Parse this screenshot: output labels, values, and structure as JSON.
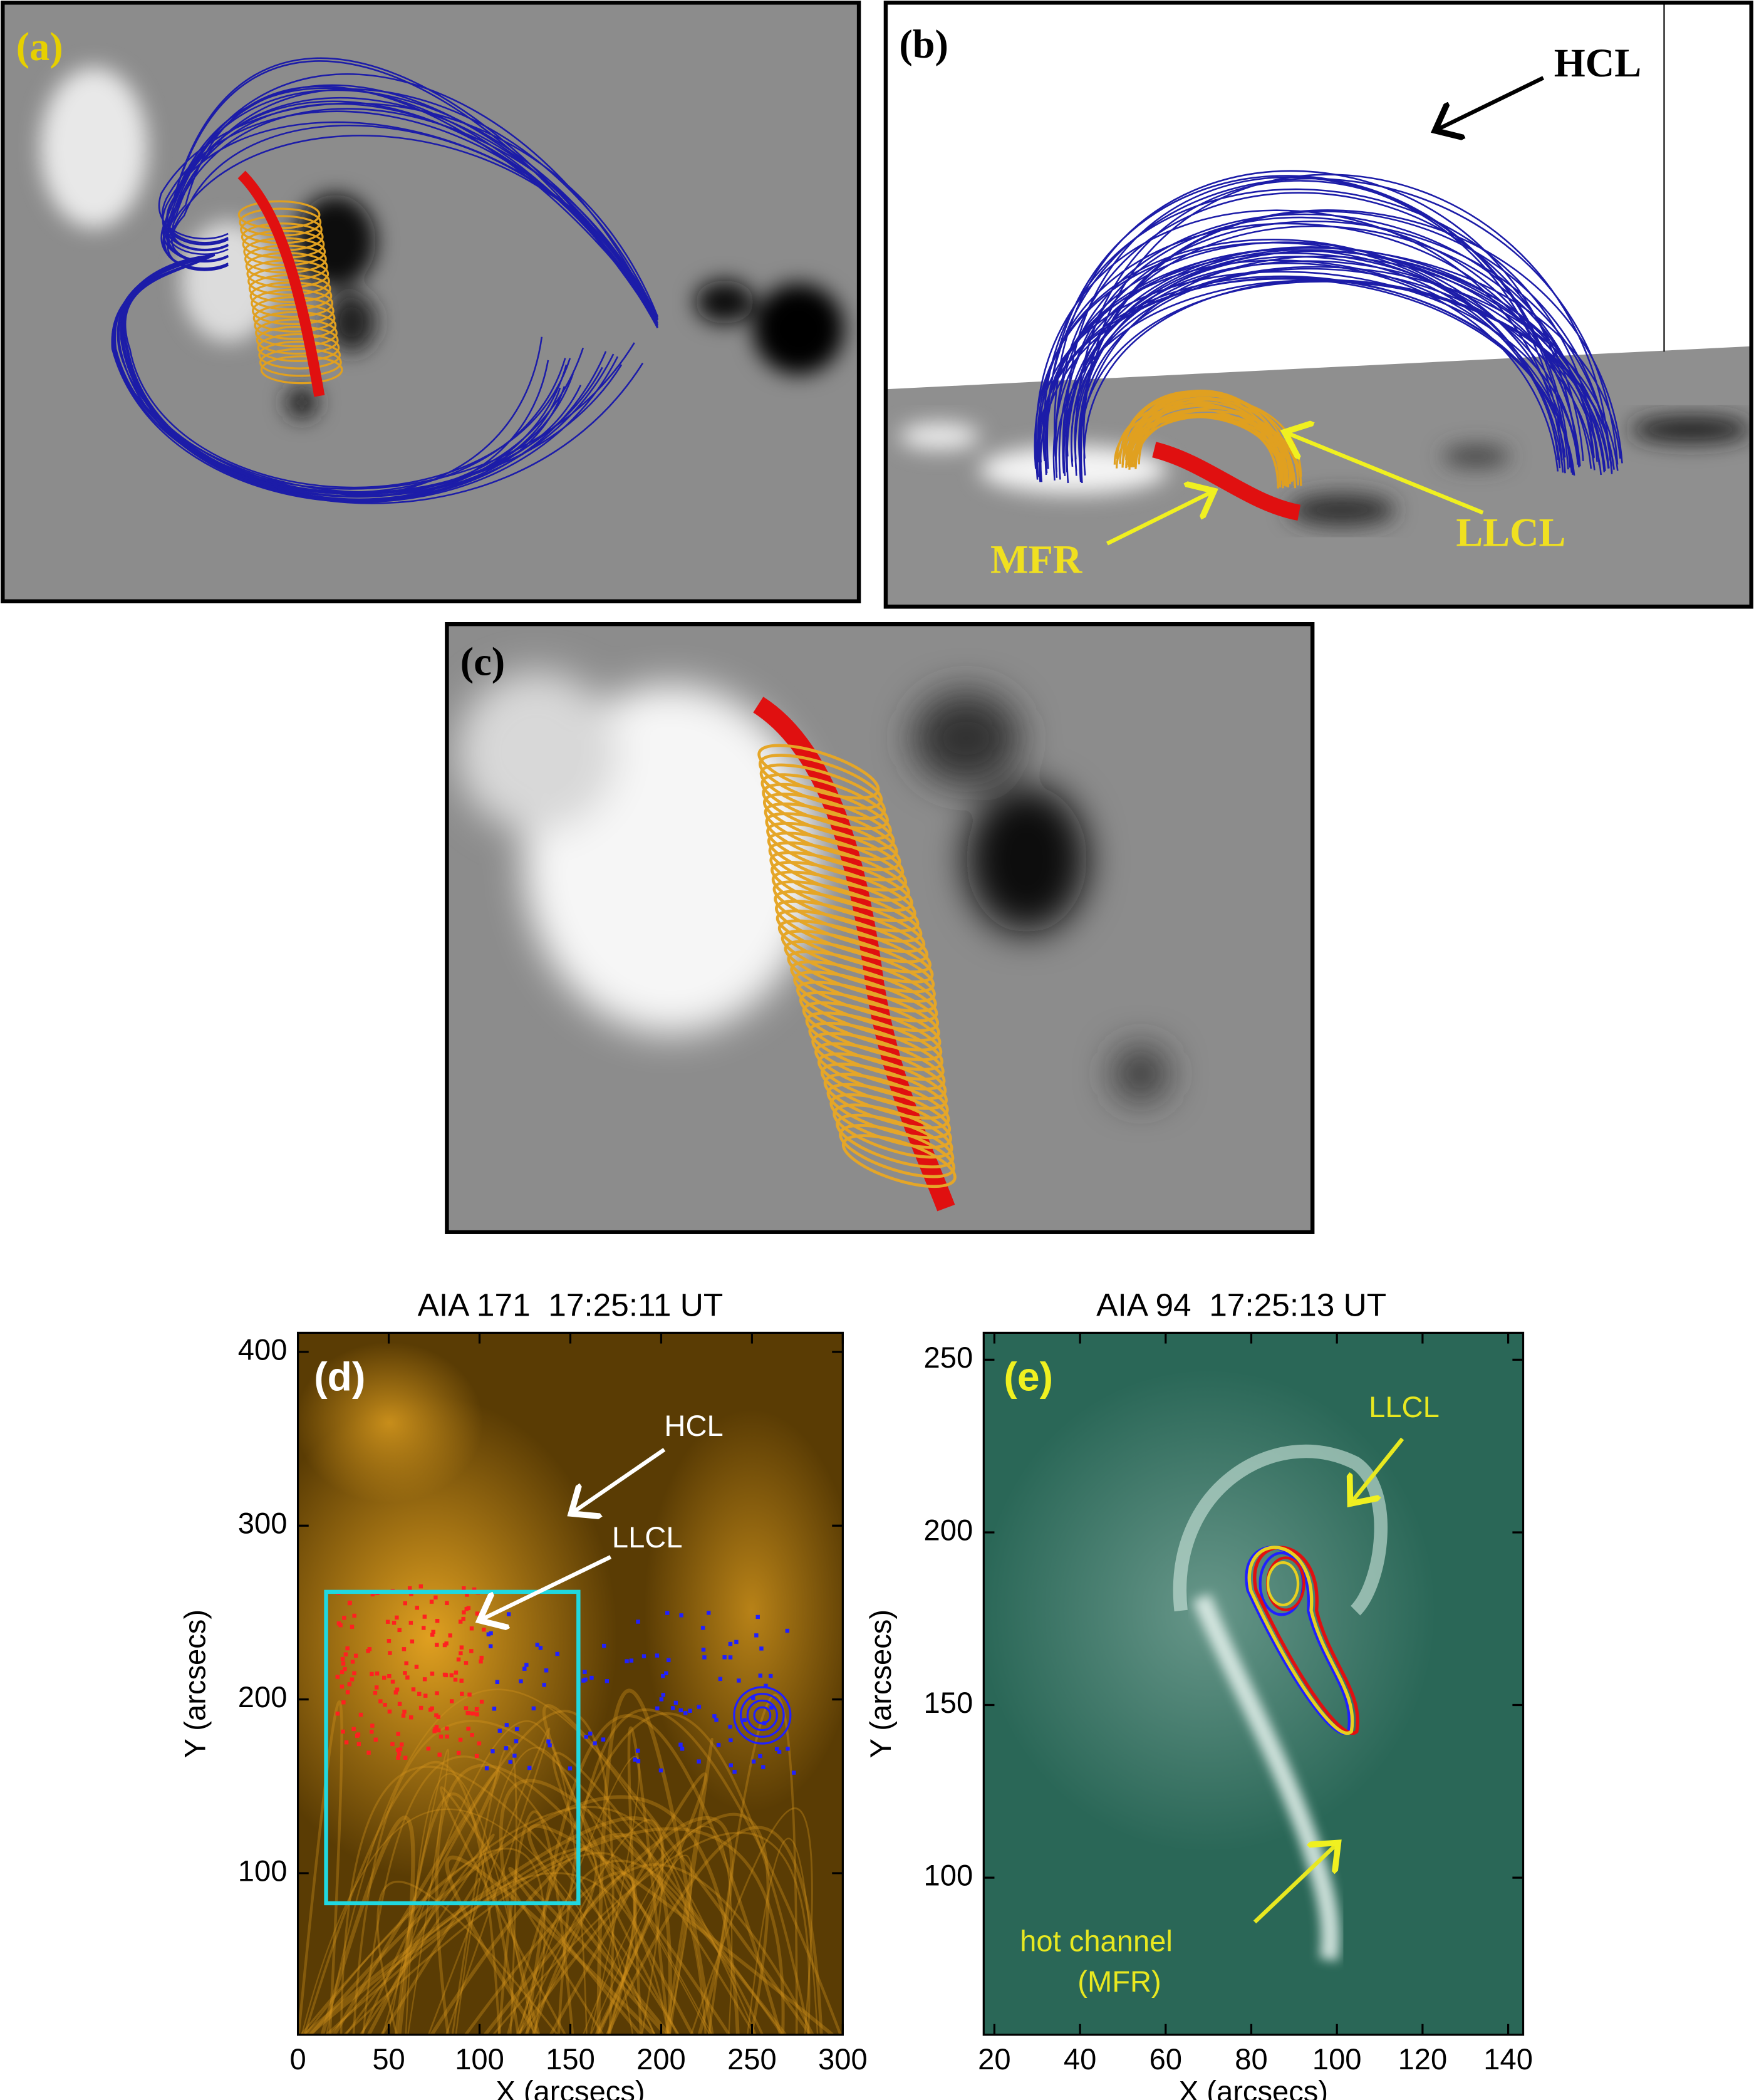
{
  "panels": [
    {
      "label": "(a)"
    },
    {
      "label": "(b)",
      "annotations": [
        "HCL",
        "MFR",
        "LLCL"
      ]
    },
    {
      "label": "(c)"
    },
    {
      "label": "(d)",
      "title": "AIA 171  17:25:11 UT",
      "annotations": [
        "HCL",
        "LLCL"
      ],
      "x_label": "X (arcsecs)",
      "y_label": "Y (arcsecs)",
      "xlim": [
        0,
        300
      ],
      "ylim": [
        7,
        411
      ],
      "xticks": [
        0,
        50,
        100,
        150,
        200,
        250,
        300
      ],
      "yticks": [
        100,
        200,
        300,
        400
      ]
    },
    {
      "label": "(e)",
      "title": "AIA 94  17:25:13 UT",
      "annotations": [
        "LLCL",
        "hot channel",
        "(MFR)"
      ],
      "x_label": "X (arcsecs)",
      "y_label": "Y (arcsecs)",
      "xlim": [
        17.5,
        143.5
      ],
      "ylim": [
        54.5,
        257.8
      ],
      "xticks": [
        20,
        40,
        60,
        80,
        100,
        120,
        140
      ],
      "yticks": [
        100,
        150,
        200,
        250
      ]
    }
  ]
}
